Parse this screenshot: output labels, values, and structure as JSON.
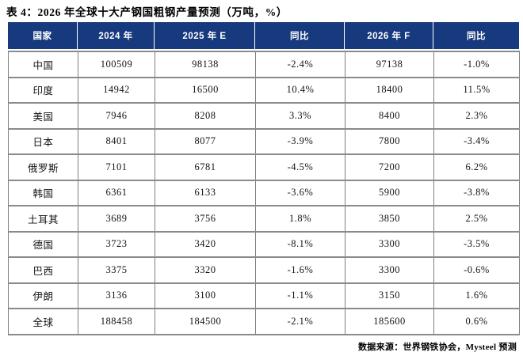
{
  "title": "表 4：2026 年全球十大产钢国粗钢产量预测（万吨，%）",
  "source": "数据来源：世界钢铁协会，Mysteel 预测",
  "colors": {
    "header_bg": "#17397d",
    "header_text": "#ffffff",
    "positive_red": "#bf4045",
    "negative_green": "#2bb573",
    "grid_line": "#8a8a8a"
  },
  "chart_data": {
    "type": "table",
    "title": "表 4：2026 年全球十大产钢国粗钢产量预测（万吨，%）",
    "columns": [
      "国家",
      "2024 年",
      "2025 年 E",
      "同比",
      "2026 年 F",
      "同比"
    ],
    "rows": [
      [
        "中国",
        "100509",
        "98138",
        "-2.4%",
        "97138",
        "-1.0%"
      ],
      [
        "印度",
        "14942",
        "16500",
        "10.4%",
        "18400",
        "11.5%"
      ],
      [
        "美国",
        "7946",
        "8208",
        "3.3%",
        "8400",
        "2.3%"
      ],
      [
        "日本",
        "8401",
        "8077",
        "-3.9%",
        "7800",
        "-3.4%"
      ],
      [
        "俄罗斯",
        "7101",
        "6781",
        "-4.5%",
        "7200",
        "6.2%"
      ],
      [
        "韩国",
        "6361",
        "6133",
        "-3.6%",
        "5900",
        "-3.8%"
      ],
      [
        "土耳其",
        "3689",
        "3756",
        "1.8%",
        "3850",
        "2.5%"
      ],
      [
        "德国",
        "3723",
        "3420",
        "-8.1%",
        "3300",
        "-3.5%"
      ],
      [
        "巴西",
        "3375",
        "3320",
        "-1.6%",
        "3300",
        "-0.6%"
      ],
      [
        "伊朗",
        "3136",
        "3100",
        "-1.1%",
        "3150",
        "1.6%"
      ],
      [
        "全球",
        "188458",
        "184500",
        "-2.1%",
        "185600",
        "0.6%"
      ]
    ],
    "source": "数据来源：世界钢铁协会，Mysteel 预测"
  }
}
